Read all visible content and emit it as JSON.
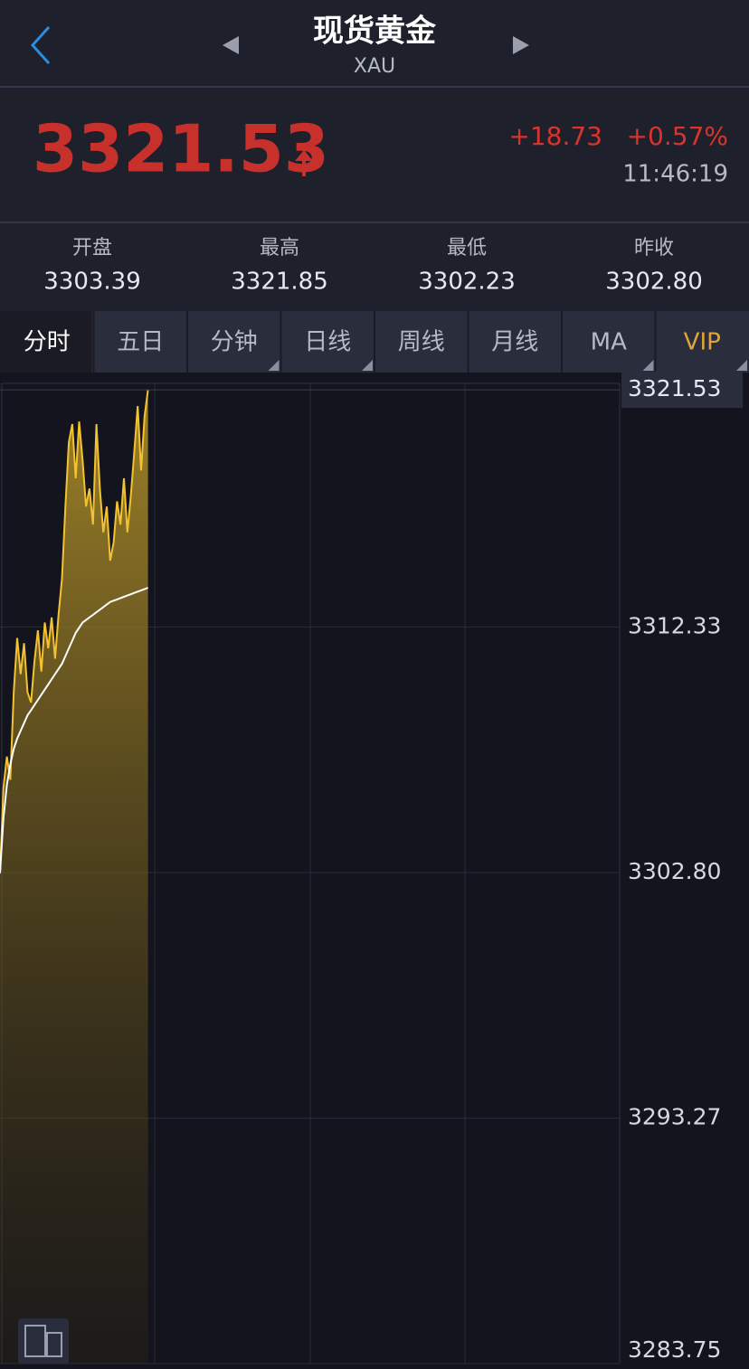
{
  "header": {
    "title": "现货黄金",
    "subtitle": "XAU"
  },
  "quote": {
    "price": "3321.53",
    "change": "+18.73",
    "change_pct": "+0.57%",
    "time": "11:46:19"
  },
  "stats": [
    {
      "label": "开盘",
      "value": "3303.39"
    },
    {
      "label": "最高",
      "value": "3321.85"
    },
    {
      "label": "最低",
      "value": "3302.23"
    },
    {
      "label": "昨收",
      "value": "3302.80"
    }
  ],
  "tabs": [
    "分时",
    "五日",
    "分钟",
    "日线",
    "周线",
    "月线",
    "MA",
    "VIP"
  ],
  "chart_data": {
    "type": "line",
    "xlim": [
      0,
      180
    ],
    "ylim": [
      3283.75,
      3321.85
    ],
    "yticks": [
      {
        "value": 3283.75,
        "label": "3283.75"
      },
      {
        "value": 3293.27,
        "label": "3293.27"
      },
      {
        "value": 3302.8,
        "label": "3302.80"
      },
      {
        "value": 3312.33,
        "label": "3312.33"
      }
    ],
    "grid": true,
    "series": [
      {
        "color": "#f2c230",
        "fill": true,
        "values": [
          3302.76,
          3306.1,
          3307.3,
          3306.4,
          3309.8,
          3311.9,
          3310.5,
          3311.7,
          3309.8,
          3309.4,
          3311.0,
          3312.2,
          3310.6,
          3312.5,
          3311.5,
          3312.7,
          3311.1,
          3312.8,
          3314.2,
          3317.0,
          3319.5,
          3320.2,
          3318.1,
          3320.3,
          3318.8,
          3317.0,
          3317.7,
          3316.3,
          3320.2,
          3317.7,
          3316.0,
          3317.0,
          3314.9,
          3315.6,
          3317.2,
          3316.3,
          3318.1,
          3316.0,
          3317.4,
          3319.1,
          3320.9,
          3318.4,
          3320.5,
          3321.53
        ]
      },
      {
        "color": "#ffffff",
        "fill": false,
        "values": [
          3302.8,
          3304.9,
          3306.2,
          3307.0,
          3307.6,
          3308.0,
          3308.3,
          3308.6,
          3308.9,
          3309.1,
          3309.3,
          3309.5,
          3309.7,
          3309.9,
          3310.1,
          3310.3,
          3310.5,
          3310.7,
          3310.9,
          3311.2,
          3311.5,
          3311.8,
          3312.1,
          3312.3,
          3312.5,
          3312.6,
          3312.7,
          3312.8,
          3312.9,
          3313.0,
          3313.1,
          3313.2,
          3313.3,
          3313.35,
          3313.4,
          3313.45,
          3313.5,
          3313.55,
          3313.6,
          3313.65,
          3313.7,
          3313.75,
          3313.8,
          3313.85
        ]
      }
    ]
  }
}
